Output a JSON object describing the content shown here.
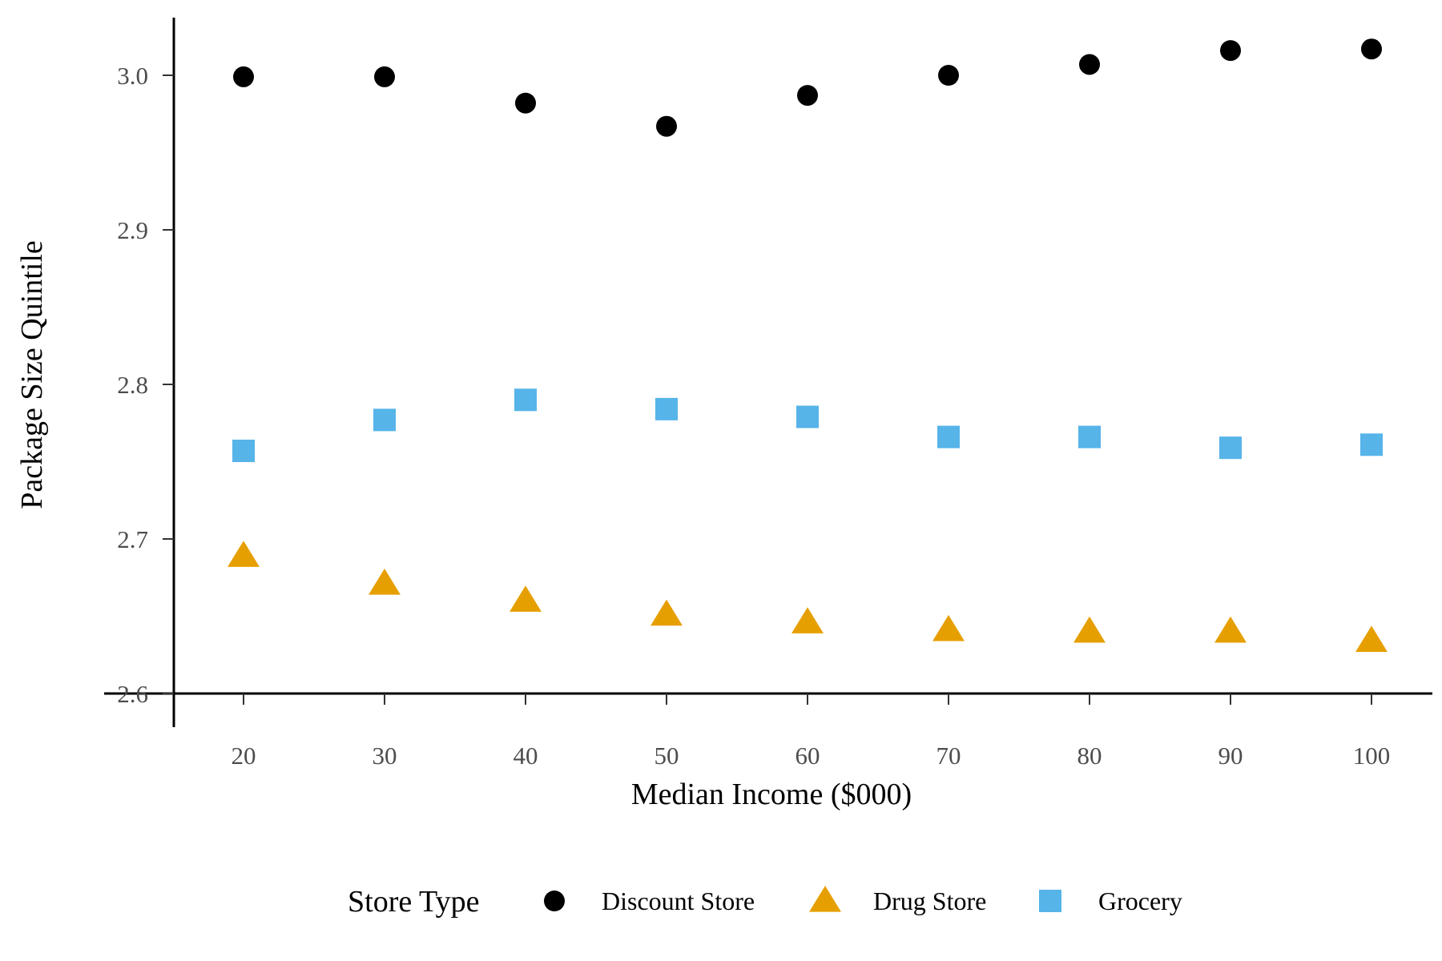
{
  "chart_data": {
    "type": "scatter",
    "title": "",
    "xlabel": "Median Income ($000)",
    "ylabel": "Package Size Quintile",
    "x": [
      20,
      30,
      40,
      50,
      60,
      70,
      80,
      90,
      100
    ],
    "xticks": [
      "20",
      "30",
      "40",
      "50",
      "60",
      "70",
      "80",
      "90",
      "100"
    ],
    "yticks": [
      "2.6",
      "2.7",
      "2.8",
      "2.9",
      "3.0"
    ],
    "ylim": [
      2.6,
      3.0
    ],
    "grid": false,
    "legend": {
      "title": "Store Type",
      "position": "bottom"
    },
    "series": [
      {
        "name": "Discount Store",
        "marker": "circle",
        "color": "#000000",
        "values": [
          2.999,
          2.999,
          2.982,
          2.967,
          2.987,
          3.0,
          3.007,
          3.016,
          3.017
        ]
      },
      {
        "name": "Drug Store",
        "marker": "triangle",
        "color": "#E69F00",
        "values": [
          2.689,
          2.671,
          2.66,
          2.651,
          2.646,
          2.641,
          2.64,
          2.64,
          2.634
        ]
      },
      {
        "name": "Grocery",
        "marker": "square",
        "color": "#56B4E9",
        "values": [
          2.757,
          2.777,
          2.79,
          2.784,
          2.779,
          2.766,
          2.766,
          2.759,
          2.761
        ]
      }
    ]
  }
}
